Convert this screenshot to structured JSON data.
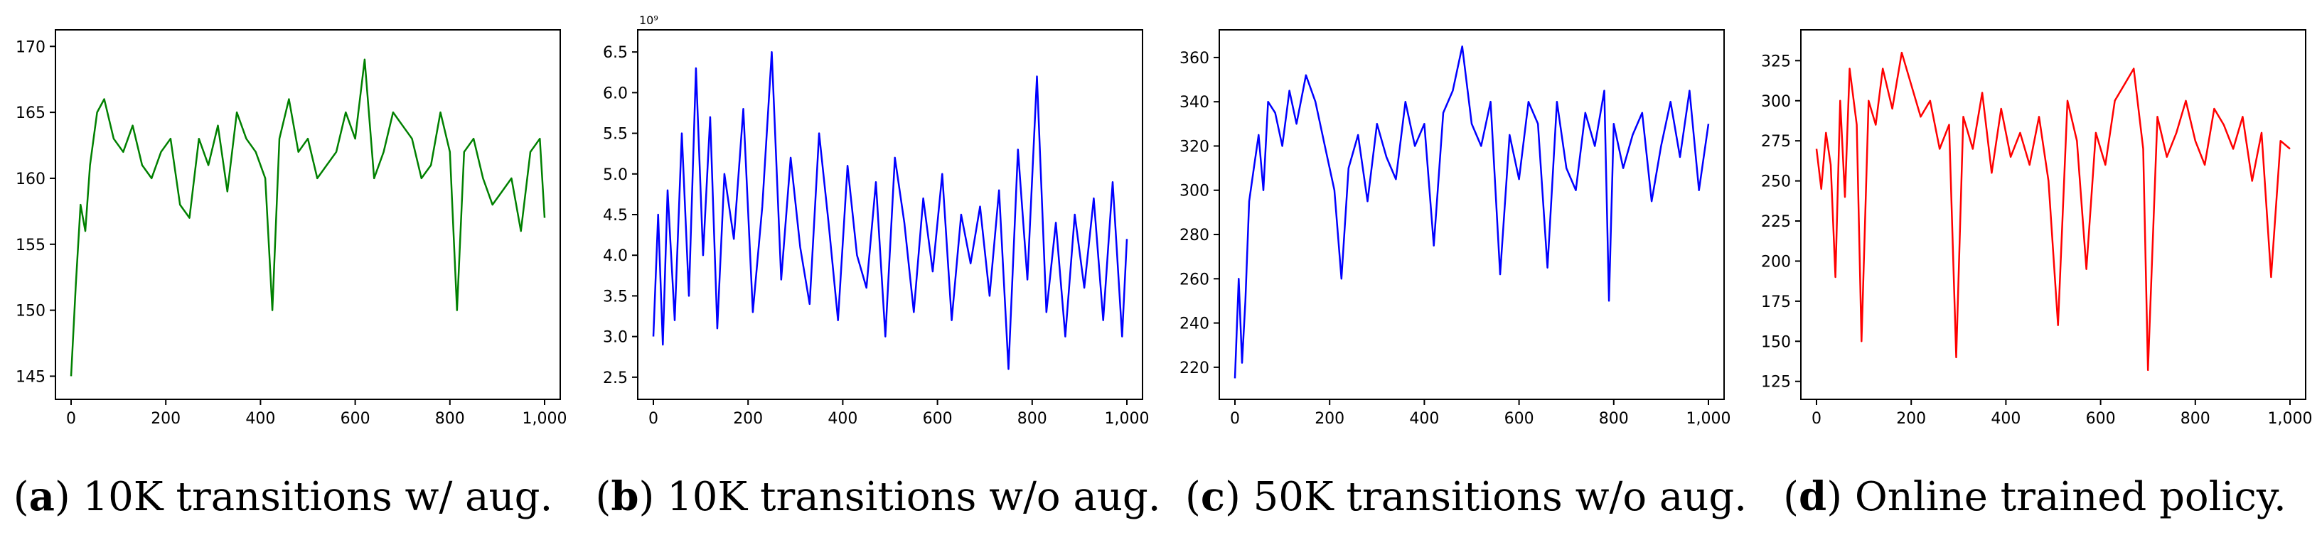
{
  "chart_data": [
    {
      "type": "line",
      "id": "a",
      "caption_letter": "a",
      "caption_text": "10K transitions w/ aug.",
      "color": "#008000",
      "xlim": [
        0,
        1000
      ],
      "ylim": [
        144,
        170.5
      ],
      "xticks": [
        0,
        200,
        400,
        600,
        800,
        1000
      ],
      "xtick_labels": [
        "0",
        "200",
        "400",
        "600",
        "800",
        "1,000"
      ],
      "yticks": [
        145,
        150,
        155,
        160,
        165,
        170
      ],
      "ytick_labels": [
        "145",
        "150",
        "155",
        "160",
        "165",
        "170"
      ],
      "exponent_label": "",
      "series": [
        {
          "name": "10K transitions w/ aug.",
          "x": [
            0,
            10,
            20,
            30,
            40,
            55,
            70,
            90,
            110,
            130,
            150,
            170,
            190,
            210,
            230,
            250,
            270,
            290,
            310,
            330,
            350,
            370,
            390,
            410,
            425,
            440,
            460,
            480,
            500,
            520,
            540,
            560,
            580,
            600,
            620,
            640,
            660,
            680,
            700,
            720,
            740,
            760,
            780,
            800,
            815,
            830,
            850,
            870,
            890,
            910,
            930,
            950,
            970,
            990,
            1000
          ],
          "values": [
            145,
            152,
            158,
            156,
            161,
            165,
            166,
            163,
            162,
            164,
            161,
            160,
            162,
            163,
            158,
            157,
            163,
            161,
            164,
            159,
            165,
            163,
            162,
            160,
            150,
            163,
            166,
            162,
            163,
            160,
            161,
            162,
            165,
            163,
            169,
            160,
            162,
            165,
            164,
            163,
            160,
            161,
            165,
            162,
            150,
            162,
            163,
            160,
            158,
            159,
            160,
            156,
            162,
            163,
            157
          ]
        }
      ]
    },
    {
      "type": "line",
      "id": "b",
      "caption_letter": "b",
      "caption_text": "10K transitions w/o aug.",
      "color": "#0000ff",
      "xlim": [
        0,
        1000
      ],
      "ylim": [
        2.35,
        6.65
      ],
      "xticks": [
        0,
        200,
        400,
        600,
        800,
        1000
      ],
      "xtick_labels": [
        "0",
        "200",
        "400",
        "600",
        "800",
        "1,000"
      ],
      "yticks": [
        2.5,
        3.0,
        3.5,
        4.0,
        4.5,
        5.0,
        5.5,
        6.0,
        6.5
      ],
      "ytick_labels": [
        "2.5",
        "3.0",
        "3.5",
        "4.0",
        "4.5",
        "5.0",
        "5.5",
        "6.0",
        "6.5"
      ],
      "exponent_label": "10⁹",
      "series": [
        {
          "name": "10K transitions w/o aug.",
          "x": [
            0,
            10,
            20,
            30,
            45,
            60,
            75,
            90,
            105,
            120,
            135,
            150,
            170,
            190,
            210,
            230,
            250,
            270,
            290,
            310,
            330,
            350,
            370,
            390,
            410,
            430,
            450,
            470,
            490,
            510,
            530,
            550,
            570,
            590,
            610,
            630,
            650,
            670,
            690,
            710,
            730,
            750,
            770,
            790,
            810,
            830,
            850,
            870,
            890,
            910,
            930,
            950,
            970,
            990,
            1000
          ],
          "values": [
            3.0,
            4.5,
            2.9,
            4.8,
            3.2,
            5.5,
            3.5,
            6.3,
            4.0,
            5.7,
            3.1,
            5.0,
            4.2,
            5.8,
            3.3,
            4.6,
            6.5,
            3.7,
            5.2,
            4.1,
            3.4,
            5.5,
            4.4,
            3.2,
            5.1,
            4.0,
            3.6,
            4.9,
            3.0,
            5.2,
            4.4,
            3.3,
            4.7,
            3.8,
            5.0,
            3.2,
            4.5,
            3.9,
            4.6,
            3.5,
            4.8,
            2.6,
            5.3,
            3.7,
            6.2,
            3.3,
            4.4,
            3.0,
            4.5,
            3.6,
            4.7,
            3.2,
            4.9,
            3.0,
            4.2
          ]
        }
      ]
    },
    {
      "type": "line",
      "id": "c",
      "caption_letter": "c",
      "caption_text": "50K transitions w/o aug.",
      "color": "#0000ff",
      "xlim": [
        0,
        1000
      ],
      "ylim": [
        210,
        368
      ],
      "xticks": [
        0,
        200,
        400,
        600,
        800,
        1000
      ],
      "xtick_labels": [
        "0",
        "200",
        "400",
        "600",
        "800",
        "1,000"
      ],
      "yticks": [
        220,
        240,
        260,
        280,
        300,
        320,
        340,
        360
      ],
      "ytick_labels": [
        "220",
        "240",
        "260",
        "280",
        "300",
        "320",
        "340",
        "360"
      ],
      "exponent_label": "",
      "series": [
        {
          "name": "50K transitions w/o aug.",
          "x": [
            0,
            8,
            15,
            22,
            30,
            40,
            50,
            60,
            70,
            85,
            100,
            115,
            130,
            150,
            170,
            190,
            210,
            225,
            240,
            260,
            280,
            300,
            320,
            340,
            360,
            380,
            400,
            420,
            440,
            460,
            480,
            500,
            520,
            540,
            560,
            580,
            600,
            620,
            640,
            660,
            680,
            700,
            720,
            740,
            760,
            780,
            790,
            800,
            820,
            840,
            860,
            880,
            900,
            920,
            940,
            960,
            980,
            1000
          ],
          "values": [
            215,
            260,
            222,
            250,
            295,
            310,
            325,
            300,
            340,
            335,
            320,
            345,
            330,
            352,
            340,
            320,
            300,
            260,
            310,
            325,
            295,
            330,
            315,
            305,
            340,
            320,
            330,
            275,
            335,
            345,
            365,
            330,
            320,
            340,
            262,
            325,
            305,
            340,
            330,
            265,
            340,
            310,
            300,
            335,
            320,
            345,
            250,
            330,
            310,
            325,
            335,
            295,
            320,
            340,
            315,
            345,
            300,
            330
          ]
        }
      ]
    },
    {
      "type": "line",
      "id": "d",
      "caption_letter": "d",
      "caption_text": "Online trained policy.",
      "color": "#ff0000",
      "xlim": [
        0,
        1000
      ],
      "ylim": [
        120,
        338
      ],
      "xticks": [
        0,
        200,
        400,
        600,
        800,
        1000
      ],
      "xtick_labels": [
        "0",
        "200",
        "400",
        "600",
        "800",
        "1,000"
      ],
      "yticks": [
        125,
        150,
        175,
        200,
        225,
        250,
        275,
        300,
        325
      ],
      "ytick_labels": [
        "125",
        "150",
        "175",
        "200",
        "225",
        "250",
        "275",
        "300",
        "325"
      ],
      "exponent_label": "",
      "series": [
        {
          "name": "Online trained policy.",
          "x": [
            0,
            10,
            20,
            30,
            40,
            50,
            60,
            70,
            85,
            95,
            110,
            125,
            140,
            160,
            180,
            200,
            220,
            240,
            260,
            280,
            295,
            310,
            330,
            350,
            370,
            390,
            410,
            430,
            450,
            470,
            490,
            510,
            530,
            550,
            570,
            590,
            610,
            630,
            650,
            670,
            690,
            700,
            720,
            740,
            760,
            780,
            800,
            820,
            840,
            860,
            880,
            900,
            920,
            940,
            960,
            980,
            1000
          ],
          "values": [
            270,
            245,
            280,
            260,
            190,
            300,
            240,
            320,
            285,
            150,
            300,
            285,
            320,
            295,
            330,
            310,
            290,
            300,
            270,
            285,
            140,
            290,
            270,
            305,
            255,
            295,
            265,
            280,
            260,
            290,
            250,
            160,
            300,
            275,
            195,
            280,
            260,
            300,
            310,
            320,
            270,
            132,
            290,
            265,
            280,
            300,
            275,
            260,
            295,
            285,
            270,
            290,
            250,
            280,
            190,
            275,
            270
          ]
        }
      ]
    }
  ]
}
